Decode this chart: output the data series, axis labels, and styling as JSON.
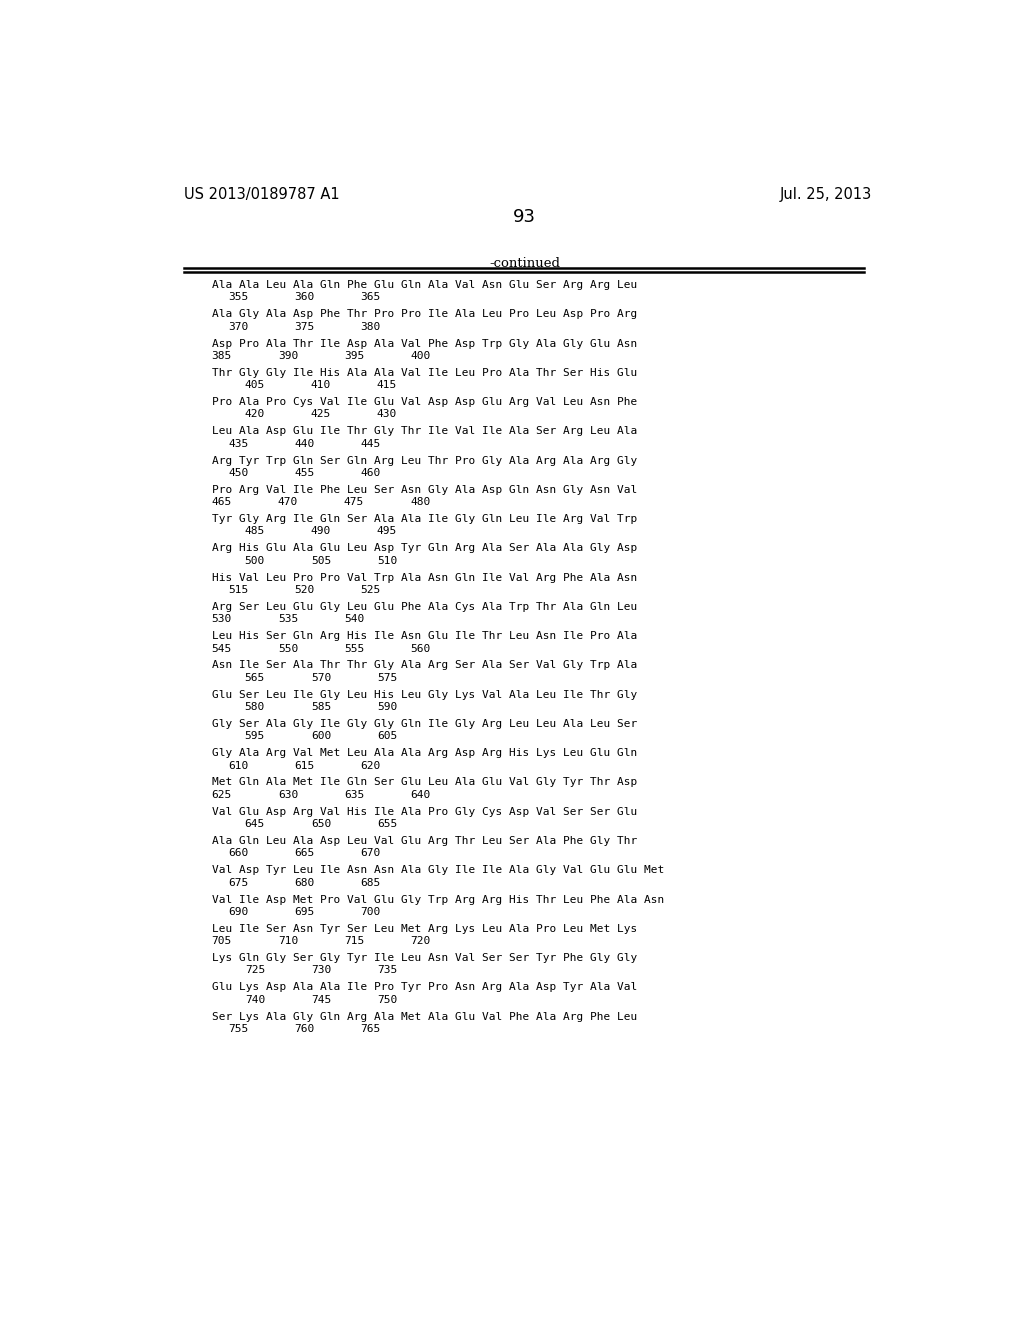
{
  "header_left": "US 2013/0189787 A1",
  "header_right": "Jul. 25, 2013",
  "page_number": "93",
  "continued_label": "-continued",
  "sequences": [
    {
      "seq": "Ala Ala Leu Ala Gln Phe Glu Gln Ala Val Asn Glu Ser Arg Arg Leu",
      "nums": {
        "355": 1,
        "360": 5,
        "365": 9
      }
    },
    {
      "seq": "Ala Gly Ala Asp Phe Thr Pro Pro Ile Ala Leu Pro Leu Asp Pro Arg",
      "nums": {
        "370": 1,
        "375": 5,
        "380": 9
      }
    },
    {
      "seq": "Asp Pro Ala Thr Ile Asp Ala Val Phe Asp Trp Gly Ala Gly Glu Asn",
      "nums": {
        "385": 0,
        "390": 4,
        "395": 8,
        "400": 12
      }
    },
    {
      "seq": "Thr Gly Gly Ile His Ala Ala Val Ile Leu Pro Ala Thr Ser His Glu",
      "nums": {
        "405": 2,
        "410": 6,
        "415": 10
      }
    },
    {
      "seq": "Pro Ala Pro Cys Val Ile Glu Val Asp Asp Glu Arg Val Leu Asn Phe",
      "nums": {
        "420": 2,
        "425": 6,
        "430": 10
      }
    },
    {
      "seq": "Leu Ala Asp Glu Ile Thr Gly Thr Ile Val Ile Ala Ser Arg Leu Ala",
      "nums": {
        "435": 1,
        "440": 5,
        "445": 9
      }
    },
    {
      "seq": "Arg Tyr Trp Gln Ser Gln Arg Leu Thr Pro Gly Ala Arg Ala Arg Gly",
      "nums": {
        "450": 1,
        "455": 5,
        "460": 9
      }
    },
    {
      "seq": "Pro Arg Val Ile Phe Leu Ser Asn Gly Ala Asp Gln Asn Gly Asn Val",
      "nums": {
        "465": 0,
        "470": 4,
        "475": 8,
        "480": 12
      }
    },
    {
      "seq": "Tyr Gly Arg Ile Gln Ser Ala Ala Ile Gly Gln Leu Ile Arg Val Trp",
      "nums": {
        "485": 2,
        "490": 6,
        "495": 10
      }
    },
    {
      "seq": "Arg His Glu Ala Glu Leu Asp Tyr Gln Arg Ala Ser Ala Ala Gly Asp",
      "nums": {
        "500": 2,
        "505": 6,
        "510": 10
      }
    },
    {
      "seq": "His Val Leu Pro Pro Val Trp Ala Asn Gln Ile Val Arg Phe Ala Asn",
      "nums": {
        "515": 1,
        "520": 5,
        "525": 9
      }
    },
    {
      "seq": "Arg Ser Leu Glu Gly Leu Glu Phe Ala Cys Ala Trp Thr Ala Gln Leu",
      "nums": {
        "530": 0,
        "535": 4,
        "540": 8
      }
    },
    {
      "seq": "Leu His Ser Gln Arg His Ile Asn Glu Ile Thr Leu Asn Ile Pro Ala",
      "nums": {
        "545": 0,
        "550": 4,
        "555": 8,
        "560": 12
      }
    },
    {
      "seq": "Asn Ile Ser Ala Thr Thr Gly Ala Arg Ser Ala Ser Val Gly Trp Ala",
      "nums": {
        "565": 2,
        "570": 6,
        "575": 10
      }
    },
    {
      "seq": "Glu Ser Leu Ile Gly Leu His Leu Gly Lys Val Ala Leu Ile Thr Gly",
      "nums": {
        "580": 2,
        "585": 6,
        "590": 10
      }
    },
    {
      "seq": "Gly Ser Ala Gly Ile Gly Gly Gln Ile Gly Arg Leu Leu Ala Leu Ser",
      "nums": {
        "595": 2,
        "600": 6,
        "605": 10
      }
    },
    {
      "seq": "Gly Ala Arg Val Met Leu Ala Ala Arg Asp Arg His Lys Leu Glu Gln",
      "nums": {
        "610": 1,
        "615": 5,
        "620": 9
      }
    },
    {
      "seq": "Met Gln Ala Met Ile Gln Ser Glu Leu Ala Glu Val Gly Tyr Thr Asp",
      "nums": {
        "625": 0,
        "630": 4,
        "635": 8,
        "640": 12
      }
    },
    {
      "seq": "Val Glu Asp Arg Val His Ile Ala Pro Gly Cys Asp Val Ser Ser Glu",
      "nums": {
        "645": 2,
        "650": 6,
        "655": 10
      }
    },
    {
      "seq": "Ala Gln Leu Ala Asp Leu Val Glu Arg Thr Leu Ser Ala Phe Gly Thr",
      "nums": {
        "660": 1,
        "665": 5,
        "670": 9
      }
    },
    {
      "seq": "Val Asp Tyr Leu Ile Asn Asn Ala Gly Ile Ile Ala Gly Val Glu Glu Met",
      "nums": {
        "675": 1,
        "680": 5,
        "685": 9
      }
    },
    {
      "seq": "Val Ile Asp Met Pro Val Glu Gly Trp Arg Arg His Thr Leu Phe Ala Asn",
      "nums": {
        "690": 1,
        "695": 5,
        "700": 9
      }
    },
    {
      "seq": "Leu Ile Ser Asn Tyr Ser Leu Met Arg Lys Leu Ala Pro Leu Met Lys",
      "nums": {
        "705": 0,
        "710": 4,
        "715": 8,
        "720": 12
      }
    },
    {
      "seq": "Lys Gln Gly Ser Gly Tyr Ile Leu Asn Val Ser Ser Tyr Phe Gly Gly",
      "nums": {
        "725": 2,
        "730": 6,
        "735": 10
      }
    },
    {
      "seq": "Glu Lys Asp Ala Ala Ile Pro Tyr Pro Asn Arg Ala Asp Tyr Ala Val",
      "nums": {
        "740": 2,
        "745": 6,
        "750": 10
      }
    },
    {
      "seq": "Ser Lys Ala Gly Gln Arg Ala Met Ala Glu Val Phe Ala Arg Phe Leu",
      "nums": {
        "755": 1,
        "760": 5,
        "765": 9
      }
    }
  ]
}
